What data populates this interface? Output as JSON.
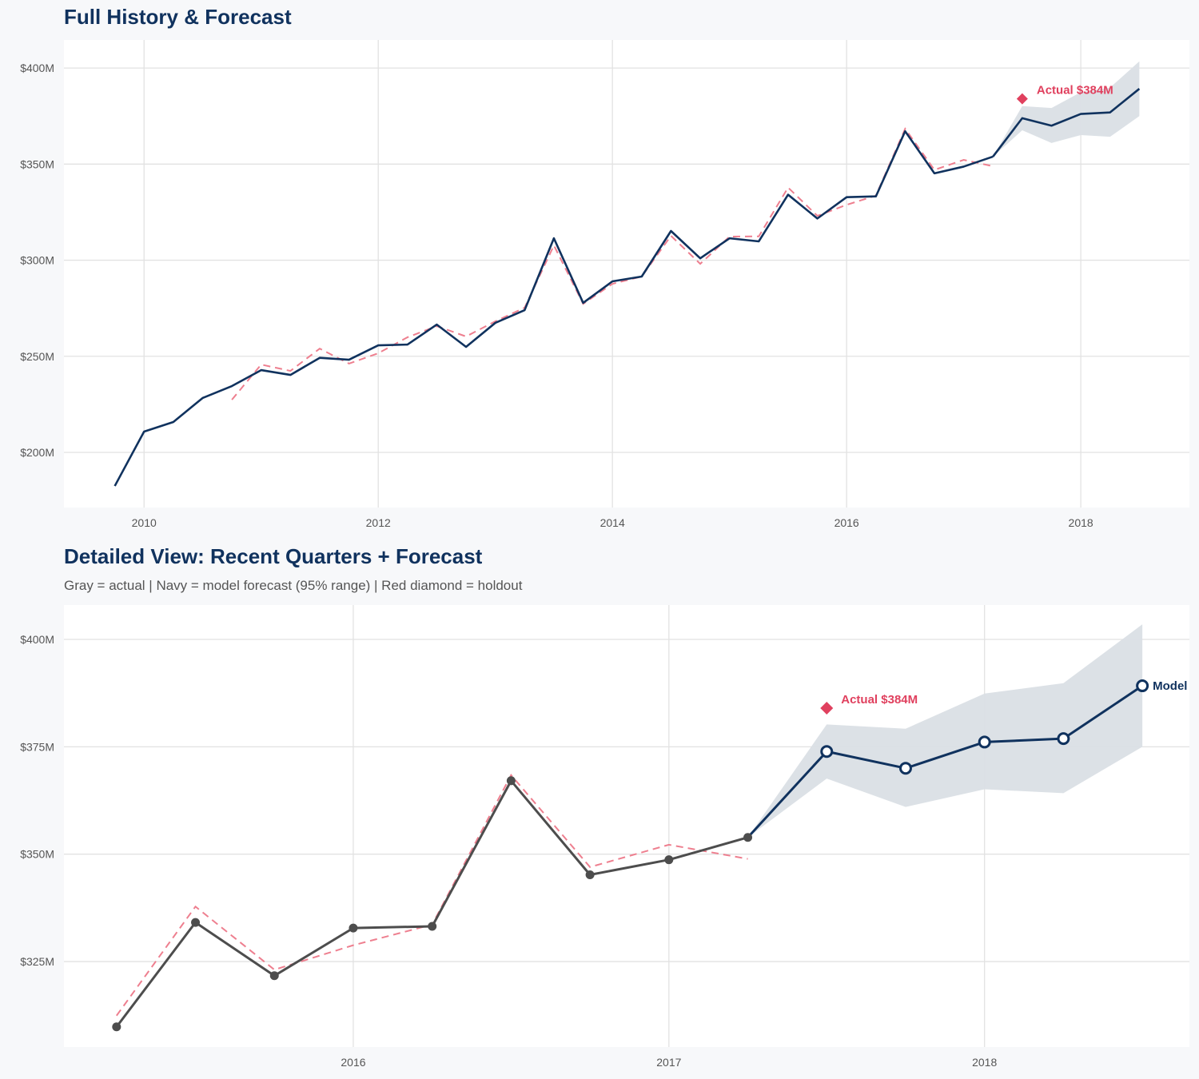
{
  "colors": {
    "navy": "#10325e",
    "gray": "#4d4d4d",
    "red": "#e0405e",
    "band": "#dadfe5",
    "fitted": "#ee7f8f"
  },
  "chart_data": [
    {
      "type": "line",
      "title": "Full History & Forecast",
      "xlabel": "",
      "ylabel": "",
      "xlim": [
        "2009-04-25",
        "2018-12-05"
      ],
      "ylim": [
        171.3,
        414.6
      ],
      "x_ticks": [
        "2010",
        "2012",
        "2014",
        "2016",
        "2018"
      ],
      "y_ticks": [
        {
          "value": 200,
          "label": "$200M"
        },
        {
          "value": 250,
          "label": "$250M"
        },
        {
          "value": 300,
          "label": "$300M"
        },
        {
          "value": 350,
          "label": "$350M"
        },
        {
          "value": 400,
          "label": "$400M"
        }
      ],
      "grid": true,
      "annotation": {
        "label": "Actual $384M",
        "x": "2017-07-01",
        "y": 384
      }
    },
    {
      "type": "line",
      "title": "Detailed View: Recent Quarters + Forecast",
      "subtitle": "Gray = actual  |  Navy = model forecast (95% range)  |  Red diamond = holdout",
      "xlabel": "",
      "ylabel": "",
      "xlim": [
        "2015-02-01",
        "2018-08-25"
      ],
      "ylim": [
        305.1,
        408
      ],
      "x_ticks": [
        "2016",
        "2017",
        "2018"
      ],
      "y_ticks": [
        {
          "value": 325,
          "label": "$325M"
        },
        {
          "value": 350,
          "label": "$350M"
        },
        {
          "value": 375,
          "label": "$375M"
        },
        {
          "value": 400,
          "label": "$400M"
        }
      ],
      "grid": true,
      "annotation": {
        "label": "Actual $384M",
        "x": "2017-07-01",
        "y": 384
      },
      "model_label": "Model"
    }
  ],
  "series": {
    "actual": [
      [
        "2009-10-01",
        182.5
      ],
      [
        "2010-01-01",
        210.8
      ],
      [
        "2010-04-01",
        215.8
      ],
      [
        "2010-07-01",
        228.3
      ],
      [
        "2010-10-01",
        234.5
      ],
      [
        "2011-01-01",
        242.8
      ],
      [
        "2011-04-01",
        240.3
      ],
      [
        "2011-07-01",
        249.2
      ],
      [
        "2011-10-01",
        248.2
      ],
      [
        "2012-01-01",
        255.7
      ],
      [
        "2012-04-01",
        256.1
      ],
      [
        "2012-07-01",
        266.5
      ],
      [
        "2012-10-01",
        254.9
      ],
      [
        "2013-01-01",
        267.4
      ],
      [
        "2013-04-01",
        274.0
      ],
      [
        "2013-07-01",
        311.4
      ],
      [
        "2013-10-01",
        277.8
      ],
      [
        "2014-01-01",
        289.0
      ],
      [
        "2014-04-01",
        291.5
      ],
      [
        "2014-07-01",
        315.2
      ],
      [
        "2014-10-01",
        301.0
      ],
      [
        "2015-01-01",
        311.4
      ],
      [
        "2015-04-01",
        309.8
      ],
      [
        "2015-07-01",
        334.1
      ],
      [
        "2015-10-01",
        321.7
      ],
      [
        "2016-01-01",
        332.8
      ],
      [
        "2016-04-01",
        333.2
      ],
      [
        "2016-07-01",
        367.1
      ],
      [
        "2016-10-01",
        345.2
      ],
      [
        "2017-01-01",
        348.7
      ],
      [
        "2017-04-01",
        353.9
      ]
    ],
    "fitted": [
      [
        "2010-10-01",
        227.4
      ],
      [
        "2011-01-01",
        245.7
      ],
      [
        "2011-04-01",
        242.4
      ],
      [
        "2011-07-01",
        254.0
      ],
      [
        "2011-10-01",
        246.2
      ],
      [
        "2012-01-01",
        251.6
      ],
      [
        "2012-04-01",
        259.9
      ],
      [
        "2012-07-01",
        265.7
      ],
      [
        "2012-10-01",
        260.3
      ],
      [
        "2013-01-01",
        268.2
      ],
      [
        "2013-04-01",
        275.3
      ],
      [
        "2013-07-01",
        307.7
      ],
      [
        "2013-10-01",
        277.3
      ],
      [
        "2014-01-01",
        287.7
      ],
      [
        "2014-04-01",
        291.5
      ],
      [
        "2014-07-01",
        312.7
      ],
      [
        "2014-10-01",
        298.1
      ],
      [
        "2015-01-01",
        312.3
      ],
      [
        "2015-04-01",
        312.4
      ],
      [
        "2015-07-01",
        337.8
      ],
      [
        "2015-10-01",
        323.1
      ],
      [
        "2016-01-01",
        328.8
      ],
      [
        "2016-04-01",
        333.6
      ],
      [
        "2016-07-01",
        368.4
      ],
      [
        "2016-10-01",
        347.0
      ],
      [
        "2017-01-01",
        352.2
      ],
      [
        "2017-04-01",
        348.9
      ]
    ],
    "forecast": [
      {
        "x": "2017-07-01",
        "y": 373.9,
        "lo": 367.6,
        "hi": 380.2
      },
      {
        "x": "2017-10-01",
        "y": 370.0,
        "lo": 361.0,
        "hi": 379.2
      },
      {
        "x": "2018-01-01",
        "y": 376.1,
        "lo": 365.1,
        "hi": 387.4
      },
      {
        "x": "2018-04-01",
        "y": 376.9,
        "lo": 364.2,
        "hi": 389.8
      },
      {
        "x": "2018-07-01",
        "y": 389.2,
        "lo": 375.0,
        "hi": 403.5
      }
    ],
    "holdout": {
      "x": "2017-07-01",
      "y": 384
    }
  }
}
